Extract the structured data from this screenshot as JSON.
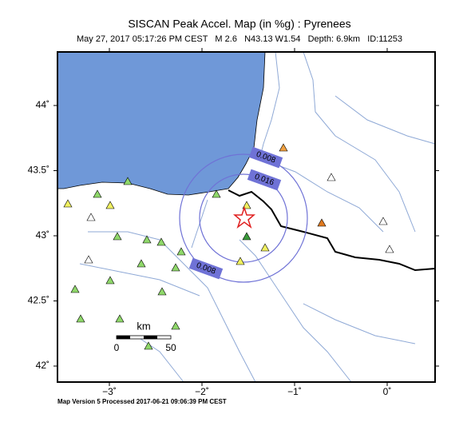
{
  "header": {
    "title": "SISCAN Peak Accel. Map (in %g) : Pyrenees",
    "subtitle": "May 27, 2017 05:17:26 PM CEST   M 2.6   N43.13 W1.54   Depth: 6.9km   ID:11253"
  },
  "map": {
    "lon_ticks": [
      {
        "value": -3,
        "label": "−3˚"
      },
      {
        "value": -2,
        "label": "−2˚"
      },
      {
        "value": -1,
        "label": "−1˚"
      },
      {
        "value": 0,
        "label": "0˚"
      }
    ],
    "lat_ticks": [
      {
        "value": 44,
        "label": "44˚"
      },
      {
        "value": 43.5,
        "label": "43.5˚"
      },
      {
        "value": 43,
        "label": "43˚"
      },
      {
        "value": 42.5,
        "label": "42.5˚"
      },
      {
        "value": 42,
        "label": "42˚"
      }
    ],
    "contour_labels": [
      "0.008",
      "0.016",
      "0.008"
    ],
    "scale_bar": {
      "unit": "km",
      "labels": [
        "0",
        "50"
      ]
    }
  },
  "footer": "Map Version 5 Processed 2017-06-21 09:06:39 PM CEST"
}
